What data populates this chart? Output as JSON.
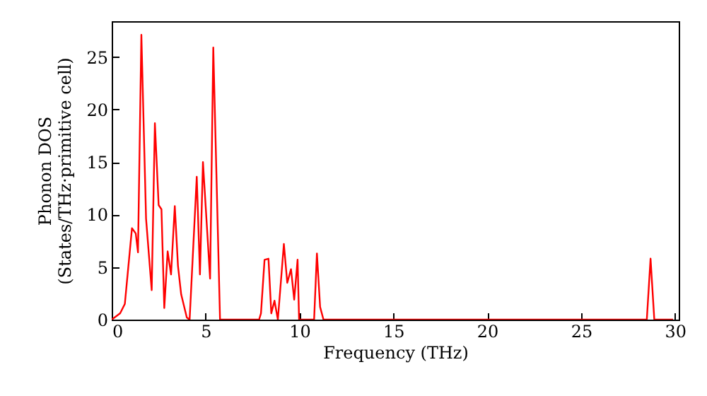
{
  "chart_data": {
    "type": "line",
    "xlabel": "Frequency (THz)",
    "ylabel": "Phonon DOS\n(States/THz·primitive cell)",
    "x": [
      0,
      0.45,
      0.7,
      1.08,
      1.28,
      1.4,
      1.58,
      1.83,
      2.13,
      2.3,
      2.5,
      2.65,
      2.8,
      2.98,
      3.16,
      3.36,
      3.53,
      3.7,
      4.0,
      4.15,
      4.53,
      4.7,
      4.86,
      5.24,
      5.41,
      5.77,
      7.85,
      7.95,
      8.14,
      8.35,
      8.5,
      8.67,
      8.85,
      9.17,
      9.35,
      9.55,
      9.72,
      9.9,
      9.98,
      10.78,
      10.93,
      11.1,
      11.28,
      28.5,
      28.7,
      28.9,
      29.9
    ],
    "series": [
      {
        "color": "#ff0000",
        "values": [
          0,
          0.6,
          1.5,
          8.7,
          8.2,
          6.4,
          27.1,
          9.6,
          2.8,
          18.7,
          10.9,
          10.5,
          1.1,
          6.5,
          4.3,
          10.8,
          5.1,
          2.4,
          0.2,
          0,
          13.6,
          4.3,
          15.0,
          3.9,
          25.9,
          0,
          0,
          0.6,
          5.7,
          5.8,
          0.6,
          1.8,
          0,
          7.2,
          3.5,
          4.8,
          1.9,
          5.7,
          0,
          0,
          6.3,
          1.2,
          0,
          0,
          5.8,
          0,
          0
        ]
      }
    ],
    "xlim": [
      0,
      30.2
    ],
    "ylim": [
      0,
      28.4
    ],
    "xticks": [
      0,
      5,
      10,
      15,
      20,
      25,
      30
    ],
    "yticks": [
      0,
      5,
      10,
      15,
      20,
      25
    ],
    "grid": false,
    "line_style": "solid"
  }
}
